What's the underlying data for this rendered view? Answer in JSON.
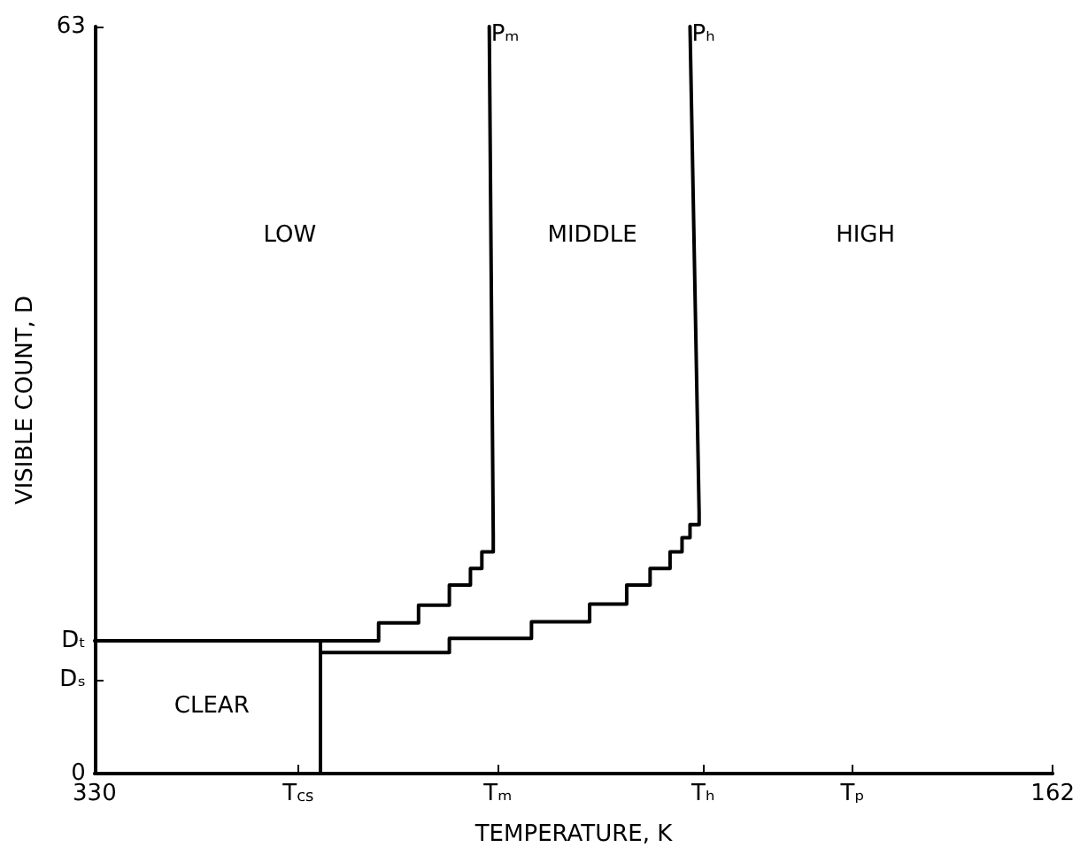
{
  "chart_data": {
    "type": "line",
    "xlabel": "TEMPERATURE, K",
    "ylabel": "VISIBLE COUNT, D",
    "xlim": [
      330,
      162
    ],
    "ylim": [
      0,
      63
    ],
    "xticks": [
      330,
      {
        "value": 294.3,
        "label": "T$_{cs}$"
      },
      {
        "value": 259.3,
        "label": "Tₘ"
      },
      {
        "value": 223.3,
        "label": "Tₕ"
      },
      {
        "value": 197.1,
        "label": "Tₚ"
      },
      162
    ],
    "yticks": [
      0,
      {
        "value": 7.9,
        "label": "Dₛ"
      },
      {
        "value": 11.2,
        "label": "Dₜ"
      },
      63
    ],
    "marker": "none",
    "line_style": "solid",
    "series": [
      {
        "color": "#000000",
        "x": [
          330,
          290.4,
          290.4
        ],
        "values": [
          11.2,
          11.2,
          0
        ]
      },
      {
        "name": "Pₘ",
        "color": "#000000",
        "x": [
          290.4,
          280.2,
          280.2,
          273.2,
          273.2,
          267.8,
          267.8,
          264.1,
          264.1,
          262.1,
          262.1,
          260.1,
          260.1,
          260.8
        ],
        "values": [
          11.2,
          11.2,
          12.7,
          12.7,
          14.2,
          14.2,
          15.9,
          15.9,
          17.3,
          17.3,
          18.7,
          18.7,
          20,
          63
        ]
      },
      {
        "name": "Pₕ",
        "color": "#000000",
        "x": [
          290.4,
          267.8,
          267.8,
          253.4,
          253.4,
          243.2,
          243.2,
          236.7,
          236.7,
          232.6,
          232.6,
          229.1,
          229.1,
          227.0,
          227.0,
          225.6,
          225.6,
          224.0,
          224.0,
          225.6
        ],
        "values": [
          10.2,
          10.2,
          11.4,
          11.4,
          12.8,
          12.8,
          14.3,
          14.3,
          15.9,
          15.9,
          17.3,
          17.3,
          18.7,
          18.7,
          19.9,
          19.9,
          21.0,
          21.0,
          22,
          63
        ]
      }
    ],
    "annotations": [
      "LOW",
      "MIDDLE",
      "HIGH",
      "CLEAR"
    ]
  }
}
